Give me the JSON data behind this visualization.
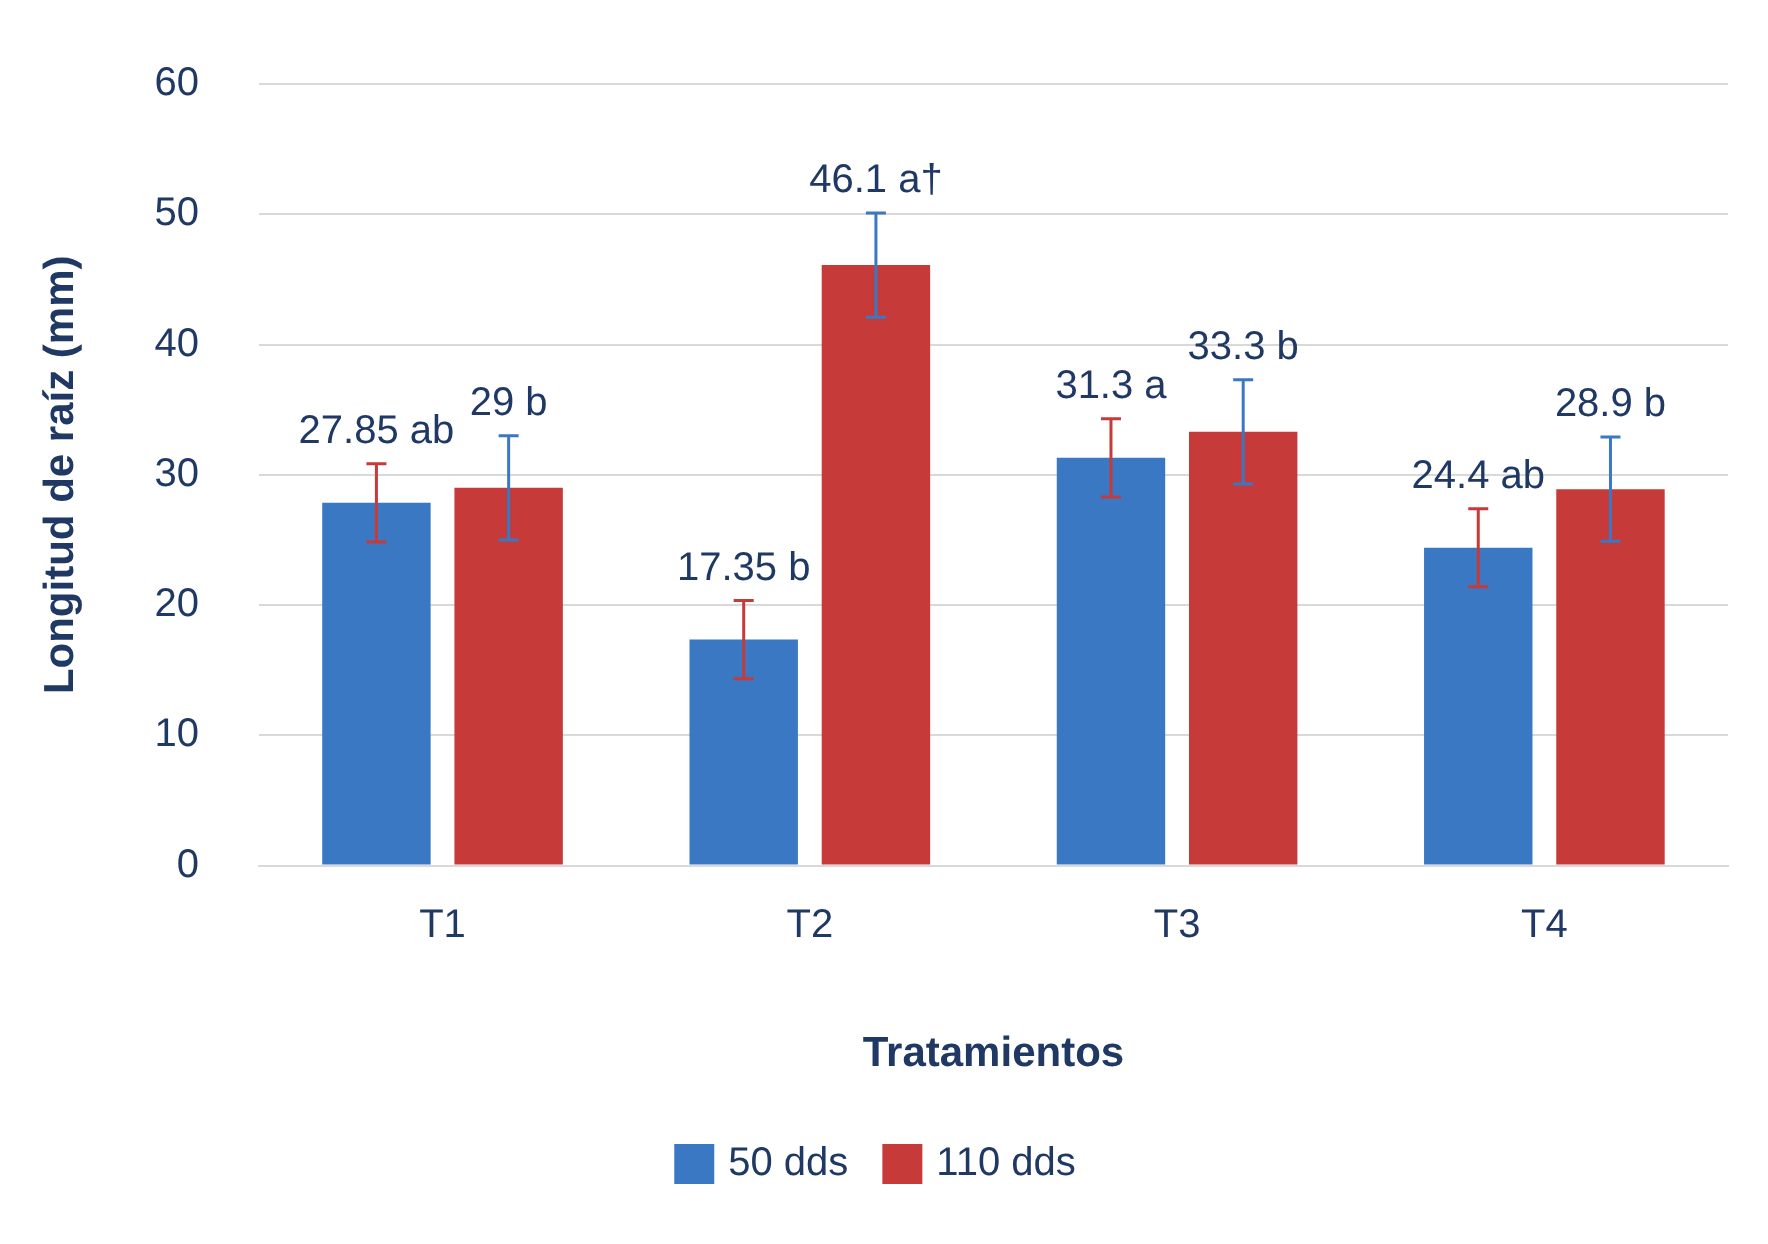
{
  "chart_data": {
    "type": "bar",
    "xlabel": "Tratamientos",
    "ylabel": "Longitud de raíz (mm)",
    "categories": [
      "T1",
      "T2",
      "T3",
      "T4"
    ],
    "series": [
      {
        "name": "50 dds",
        "color": "#3a78c4",
        "values": [
          27.85,
          17.35,
          31.3,
          24.4
        ],
        "errors": [
          3,
          3,
          3,
          3
        ],
        "value_labels": [
          "27.85 ab",
          "17.35 b",
          "31.3 a",
          "24.4 ab"
        ]
      },
      {
        "name": "110 dds",
        "color": "#c63a3a",
        "values": [
          29,
          46.1,
          33.3,
          28.9
        ],
        "errors": [
          4,
          4,
          4,
          4
        ],
        "value_labels": [
          "29 b",
          "46.1 a†",
          "33.3 b",
          "28.9 b"
        ]
      }
    ],
    "ylim": [
      0,
      60
    ],
    "yticks": [
      0,
      10,
      20,
      30,
      40,
      50,
      60
    ],
    "grid": "y",
    "legend": "bottom"
  }
}
